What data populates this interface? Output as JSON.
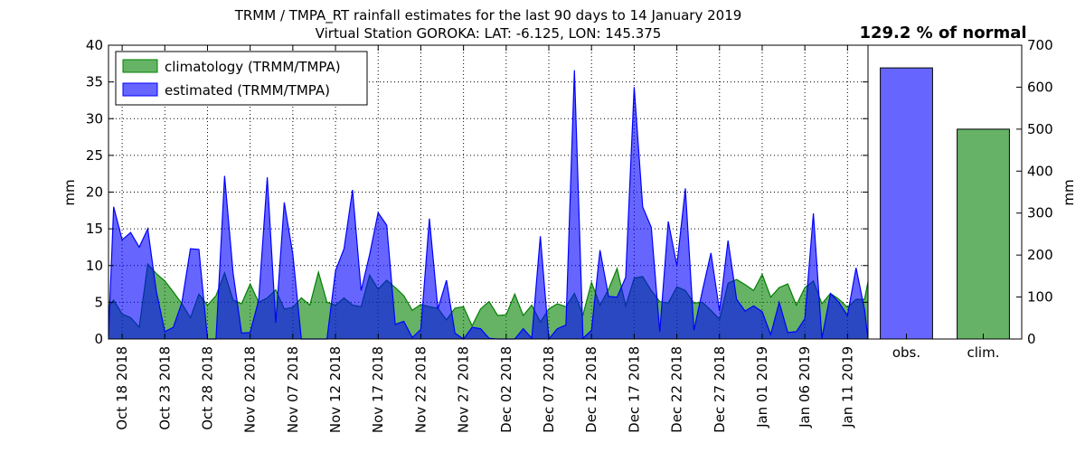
{
  "chart_data": [
    {
      "type": "area",
      "title": "TRMM / TMPA_RT rainfall estimates for the last 90 days to 14 January 2019",
      "subtitle": "Virtual Station GOROKA: LAT: -6.125, LON: 145.375",
      "ylabel": "mm",
      "ylim": [
        0,
        40
      ],
      "yticks": [
        0,
        5,
        10,
        15,
        20,
        25,
        30,
        35,
        40
      ],
      "xlim_days": [
        16.4,
        105.4
      ],
      "xticks": [
        {
          "label": "Oct 18 2018",
          "day": 18
        },
        {
          "label": "Oct 23 2018",
          "day": 23
        },
        {
          "label": "Oct 28 2018",
          "day": 28
        },
        {
          "label": "Nov 02 2018",
          "day": 33
        },
        {
          "label": "Nov 07 2018",
          "day": 38
        },
        {
          "label": "Nov 12 2018",
          "day": 43
        },
        {
          "label": "Nov 17 2018",
          "day": 48
        },
        {
          "label": "Nov 22 2018",
          "day": 53
        },
        {
          "label": "Nov 27 2018",
          "day": 58
        },
        {
          "label": "Dec 02 2018",
          "day": 63
        },
        {
          "label": "Dec 07 2018",
          "day": 68
        },
        {
          "label": "Dec 12 2018",
          "day": 73
        },
        {
          "label": "Dec 17 2018",
          "day": 78
        },
        {
          "label": "Dec 22 2018",
          "day": 83
        },
        {
          "label": "Dec 27 2018",
          "day": 88
        },
        {
          "label": "Jan 01 2019",
          "day": 93
        },
        {
          "label": "Jan 06 2019",
          "day": 98
        },
        {
          "label": "Jan 11 2019",
          "day": 103
        }
      ],
      "grid": true,
      "legend_position": "top-left",
      "series": [
        {
          "name": "climatology (TRMM/TMPA)",
          "color": "#008000",
          "values": [
            [
              16.4,
              4.4
            ],
            [
              17,
              5.3
            ],
            [
              18,
              3.4
            ],
            [
              19,
              2.9
            ],
            [
              20,
              1.6
            ],
            [
              21,
              10.2
            ],
            [
              22,
              8.9
            ],
            [
              23,
              7.9
            ],
            [
              24,
              6.4
            ],
            [
              25,
              4.8
            ],
            [
              26,
              2.9
            ],
            [
              27,
              6.1
            ],
            [
              28,
              4.6
            ],
            [
              29,
              5.9
            ],
            [
              30,
              9.0
            ],
            [
              31,
              5.3
            ],
            [
              32,
              4.8
            ],
            [
              33,
              7.5
            ],
            [
              34,
              5.0
            ],
            [
              35,
              5.6
            ],
            [
              36,
              6.7
            ],
            [
              37,
              4.1
            ],
            [
              38,
              4.3
            ],
            [
              39,
              5.6
            ],
            [
              40,
              4.6
            ],
            [
              41,
              9.1
            ],
            [
              42,
              5.0
            ],
            [
              43,
              4.6
            ],
            [
              44,
              5.6
            ],
            [
              45,
              4.6
            ],
            [
              46,
              4.4
            ],
            [
              47,
              8.7
            ],
            [
              48,
              6.8
            ],
            [
              49,
              8.0
            ],
            [
              50,
              7.0
            ],
            [
              51,
              5.9
            ],
            [
              52,
              3.9
            ],
            [
              53,
              4.7
            ],
            [
              54,
              4.4
            ],
            [
              55,
              4.2
            ],
            [
              56,
              2.6
            ],
            [
              57,
              4.2
            ],
            [
              58,
              4.4
            ],
            [
              59,
              1.8
            ],
            [
              60,
              4.1
            ],
            [
              61,
              5.1
            ],
            [
              62,
              3.2
            ],
            [
              63,
              3.3
            ],
            [
              64,
              6.1
            ],
            [
              65,
              3.2
            ],
            [
              66,
              4.6
            ],
            [
              67,
              2.3
            ],
            [
              68,
              4.1
            ],
            [
              69,
              4.8
            ],
            [
              70,
              4.4
            ],
            [
              71,
              6.2
            ],
            [
              72,
              3.3
            ],
            [
              73,
              7.7
            ],
            [
              74,
              4.6
            ],
            [
              75,
              6.8
            ],
            [
              76,
              9.6
            ],
            [
              77,
              4.5
            ],
            [
              78,
              8.3
            ],
            [
              79,
              8.5
            ],
            [
              80,
              6.6
            ],
            [
              81,
              5.1
            ],
            [
              82,
              4.9
            ],
            [
              83,
              7.1
            ],
            [
              84,
              6.6
            ],
            [
              85,
              4.9
            ],
            [
              86,
              5.0
            ],
            [
              87,
              3.9
            ],
            [
              88,
              2.7
            ],
            [
              89,
              7.6
            ],
            [
              90,
              8.1
            ],
            [
              91,
              7.4
            ],
            [
              92,
              6.6
            ],
            [
              93,
              8.8
            ],
            [
              94,
              5.7
            ],
            [
              95,
              7.0
            ],
            [
              96,
              7.5
            ],
            [
              97,
              4.6
            ],
            [
              98,
              7.0
            ],
            [
              99,
              7.9
            ],
            [
              100,
              4.8
            ],
            [
              101,
              6.2
            ],
            [
              102,
              5.4
            ],
            [
              103,
              4.3
            ],
            [
              104,
              5.4
            ],
            [
              105,
              5.4
            ],
            [
              105.4,
              7.8
            ]
          ]
        },
        {
          "name": "estimated (TRMM/TMPA)",
          "color": "#0000ff",
          "values": [
            [
              16.4,
              0.5
            ],
            [
              17,
              18.0
            ],
            [
              18,
              13.5
            ],
            [
              19,
              14.5
            ],
            [
              20,
              12.5
            ],
            [
              21,
              15.0
            ],
            [
              22,
              6.5
            ],
            [
              23,
              1.0
            ],
            [
              24,
              1.6
            ],
            [
              25,
              5.0
            ],
            [
              26,
              12.3
            ],
            [
              27,
              12.2
            ],
            [
              28,
              0.0
            ],
            [
              29,
              0.0
            ],
            [
              30,
              22.2
            ],
            [
              31,
              9.0
            ],
            [
              32,
              0.8
            ],
            [
              33,
              0.9
            ],
            [
              34,
              5.3
            ],
            [
              35,
              22.0
            ],
            [
              36,
              2.2
            ],
            [
              37,
              18.6
            ],
            [
              38,
              11.5
            ],
            [
              39,
              0.0
            ],
            [
              40,
              0.0
            ],
            [
              41,
              0.0
            ],
            [
              42,
              0.0
            ],
            [
              43,
              9.3
            ],
            [
              44,
              12.3
            ],
            [
              45,
              20.3
            ],
            [
              46,
              6.6
            ],
            [
              47,
              11.5
            ],
            [
              48,
              17.2
            ],
            [
              49,
              15.5
            ],
            [
              50,
              2.0
            ],
            [
              51,
              2.4
            ],
            [
              52,
              0.2
            ],
            [
              53,
              1.3
            ],
            [
              54,
              16.4
            ],
            [
              55,
              4.1
            ],
            [
              56,
              8.0
            ],
            [
              57,
              0.8
            ],
            [
              58,
              0.0
            ],
            [
              59,
              1.6
            ],
            [
              60,
              1.4
            ],
            [
              61,
              0.1
            ],
            [
              62,
              0.0
            ],
            [
              63,
              0.0
            ],
            [
              64,
              0.0
            ],
            [
              65,
              1.4
            ],
            [
              66,
              0.1
            ],
            [
              67,
              14.0
            ],
            [
              68,
              0.0
            ],
            [
              69,
              1.4
            ],
            [
              70,
              1.9
            ],
            [
              71,
              36.6
            ],
            [
              72,
              0.1
            ],
            [
              73,
              1.2
            ],
            [
              74,
              12.1
            ],
            [
              75,
              5.8
            ],
            [
              76,
              5.7
            ],
            [
              77,
              8.4
            ],
            [
              78,
              34.3
            ],
            [
              79,
              18.0
            ],
            [
              80,
              15.2
            ],
            [
              81,
              1.0
            ],
            [
              82,
              16.0
            ],
            [
              83,
              10.0
            ],
            [
              84,
              20.5
            ],
            [
              85,
              1.2
            ],
            [
              86,
              6.6
            ],
            [
              87,
              11.7
            ],
            [
              88,
              3.8
            ],
            [
              89,
              13.4
            ],
            [
              90,
              5.4
            ],
            [
              91,
              3.8
            ],
            [
              92,
              4.5
            ],
            [
              93,
              3.7
            ],
            [
              94,
              0.6
            ],
            [
              95,
              5.0
            ],
            [
              96,
              0.9
            ],
            [
              97,
              1.0
            ],
            [
              98,
              2.8
            ],
            [
              99,
              17.1
            ],
            [
              100,
              0.1
            ],
            [
              101,
              6.2
            ],
            [
              102,
              5.0
            ],
            [
              103,
              3.2
            ],
            [
              104,
              9.7
            ],
            [
              105,
              4.0
            ],
            [
              105.4,
              0.0
            ]
          ]
        }
      ]
    },
    {
      "type": "bar",
      "title": "129.2 % of normal",
      "categories": [
        "obs.",
        "clim."
      ],
      "values": [
        646,
        500
      ],
      "colors": [
        "#6666ff",
        "#66b266"
      ],
      "ylabel": "mm",
      "ylim": [
        0,
        700
      ],
      "yticks": [
        0,
        100,
        200,
        300,
        400,
        500,
        600,
        700
      ]
    }
  ]
}
